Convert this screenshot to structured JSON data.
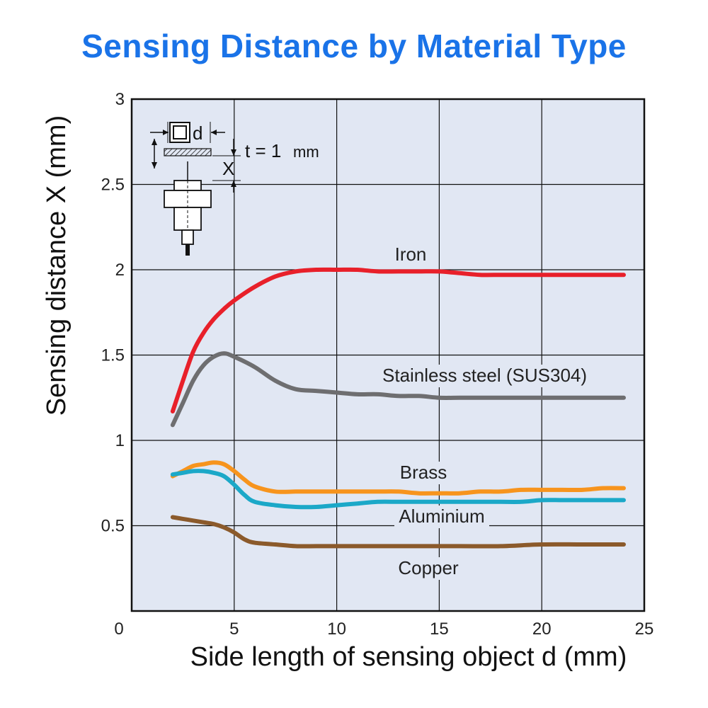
{
  "title": "Sensing Distance by Material Type",
  "chart_data": {
    "type": "line",
    "title": "Sensing Distance by Material Type",
    "xlabel": "Side length of sensing object d (mm)",
    "ylabel": "Sensing distance X (mm)",
    "xlim": [
      0,
      25
    ],
    "ylim": [
      0,
      3
    ],
    "xticks": [
      "0",
      "5",
      "10",
      "15",
      "20",
      "25"
    ],
    "yticks": [
      "0.5",
      "1",
      "1.5",
      "2",
      "2.5",
      "3"
    ],
    "grid": true,
    "series": [
      {
        "name": "Iron",
        "color": "#e8202a",
        "x": [
          2,
          2.5,
          3,
          3.5,
          4,
          4.5,
          5,
          6,
          7,
          8,
          9,
          10,
          11,
          12,
          13,
          14,
          15,
          16,
          17,
          18,
          19,
          20,
          21,
          22,
          23,
          24
        ],
        "y": [
          1.17,
          1.35,
          1.52,
          1.63,
          1.71,
          1.77,
          1.82,
          1.9,
          1.96,
          1.99,
          2.0,
          2.0,
          2.0,
          1.99,
          1.99,
          1.99,
          1.99,
          1.98,
          1.97,
          1.97,
          1.97,
          1.97,
          1.97,
          1.97,
          1.97,
          1.97
        ]
      },
      {
        "name": "Stainless steel (SUS304)",
        "color": "#6e6e70",
        "x": [
          2,
          2.5,
          3,
          3.5,
          4,
          4.5,
          5,
          6,
          7,
          8,
          9,
          10,
          11,
          12,
          13,
          14,
          15,
          16,
          17,
          18,
          19,
          20,
          21,
          22,
          23,
          24
        ],
        "y": [
          1.09,
          1.22,
          1.35,
          1.44,
          1.49,
          1.51,
          1.49,
          1.43,
          1.35,
          1.3,
          1.29,
          1.28,
          1.27,
          1.27,
          1.26,
          1.26,
          1.25,
          1.25,
          1.25,
          1.25,
          1.25,
          1.25,
          1.25,
          1.25,
          1.25,
          1.25
        ]
      },
      {
        "name": "Brass",
        "color": "#f7941d",
        "x": [
          2,
          2.5,
          3,
          3.5,
          4,
          4.5,
          5,
          5.5,
          6,
          7,
          8,
          9,
          10,
          11,
          12,
          13,
          14,
          15,
          16,
          17,
          18,
          19,
          20,
          21,
          22,
          23,
          24
        ],
        "y": [
          0.79,
          0.82,
          0.85,
          0.86,
          0.87,
          0.86,
          0.82,
          0.77,
          0.73,
          0.7,
          0.7,
          0.7,
          0.7,
          0.7,
          0.7,
          0.7,
          0.69,
          0.69,
          0.69,
          0.7,
          0.7,
          0.71,
          0.71,
          0.71,
          0.71,
          0.72,
          0.72
        ]
      },
      {
        "name": "Aluminium",
        "color": "#1ba8c8",
        "x": [
          2,
          2.5,
          3,
          3.5,
          4,
          4.5,
          5,
          5.5,
          6,
          7,
          8,
          9,
          10,
          11,
          12,
          13,
          14,
          15,
          16,
          17,
          18,
          19,
          20,
          21,
          22,
          23,
          24
        ],
        "y": [
          0.8,
          0.81,
          0.82,
          0.82,
          0.81,
          0.79,
          0.74,
          0.68,
          0.64,
          0.62,
          0.61,
          0.61,
          0.62,
          0.63,
          0.64,
          0.64,
          0.64,
          0.64,
          0.64,
          0.64,
          0.64,
          0.64,
          0.65,
          0.65,
          0.65,
          0.65,
          0.65
        ]
      },
      {
        "name": "Copper",
        "color": "#8b5a2b",
        "x": [
          2,
          2.5,
          3,
          3.5,
          4,
          4.5,
          5,
          5.5,
          6,
          7,
          8,
          9,
          10,
          12,
          14,
          16,
          18,
          20,
          22,
          24
        ],
        "y": [
          0.55,
          0.54,
          0.53,
          0.52,
          0.51,
          0.49,
          0.46,
          0.42,
          0.4,
          0.39,
          0.38,
          0.38,
          0.38,
          0.38,
          0.38,
          0.38,
          0.38,
          0.39,
          0.39,
          0.39
        ]
      }
    ],
    "inset": {
      "d_label": "d",
      "t_label": "t = 1",
      "t_unit": "mm",
      "x_label": "X"
    }
  }
}
